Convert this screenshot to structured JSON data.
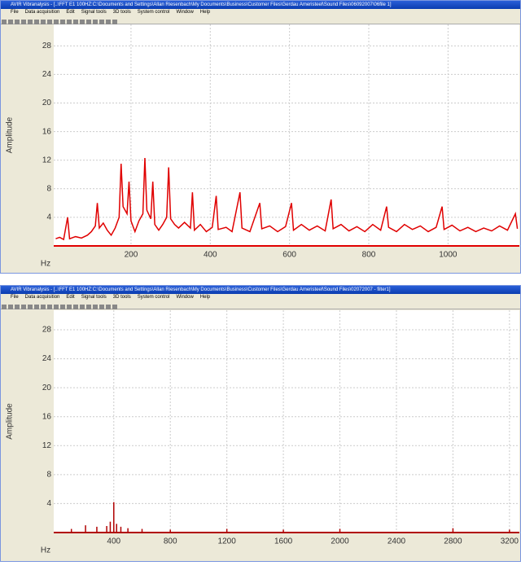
{
  "windows": [
    {
      "title": "AVIR Vibranalysis - [..\\FFT E1 100HZ:C:\\Documents and Settings\\Allan Riesenbach\\My Documents\\Business\\Customer Files\\Gerdau Ameristeel\\Sound Files\\06092007\\06file 1]",
      "menu": [
        "File",
        "Data acquisition",
        "Edit",
        "Signal tools",
        "3D tools",
        "System control",
        "Window",
        "Help"
      ],
      "chart_data": {
        "type": "line",
        "y_label": "Amplitude",
        "x_label": "Hz",
        "color": "#e00000",
        "grid": true,
        "xlim": [
          5,
          1180
        ],
        "ylim": [
          0,
          31
        ],
        "xticks": [
          200,
          400,
          600,
          800,
          1000
        ],
        "yticks": [
          4,
          8,
          12,
          16,
          20,
          24,
          28
        ],
        "x": [
          10,
          20,
          30,
          40,
          45,
          60,
          75,
          90,
          100,
          110,
          115,
          120,
          130,
          140,
          150,
          160,
          170,
          175,
          180,
          190,
          195,
          200,
          210,
          220,
          230,
          235,
          240,
          250,
          255,
          260,
          270,
          280,
          290,
          295,
          300,
          310,
          320,
          335,
          350,
          355,
          360,
          375,
          390,
          405,
          415,
          420,
          440,
          455,
          475,
          480,
          500,
          525,
          530,
          550,
          570,
          590,
          605,
          610,
          630,
          650,
          670,
          690,
          705,
          710,
          730,
          750,
          770,
          790,
          810,
          830,
          845,
          850,
          870,
          890,
          910,
          930,
          950,
          970,
          985,
          990,
          1010,
          1030,
          1050,
          1070,
          1090,
          1110,
          1130,
          1150,
          1170,
          1175
        ],
        "values": [
          1,
          1.2,
          0.9,
          4,
          1,
          1.3,
          1.1,
          1.5,
          2,
          2.8,
          6,
          2.5,
          3.2,
          2.2,
          1.5,
          2.5,
          4,
          11.5,
          5.5,
          4.5,
          9,
          3.5,
          2,
          3.5,
          4.5,
          12.3,
          5,
          3.8,
          9,
          3,
          2.2,
          3,
          4,
          11,
          3.8,
          3,
          2.5,
          3.3,
          2.5,
          7.5,
          2.2,
          3,
          2,
          2.6,
          7,
          2.3,
          2.6,
          2,
          7.5,
          2.5,
          2,
          6,
          2.4,
          2.8,
          2,
          2.7,
          6,
          2.2,
          3,
          2.2,
          2.8,
          2.1,
          6.5,
          2.4,
          3,
          2.1,
          2.7,
          2,
          3,
          2.2,
          5.5,
          2.6,
          2,
          3,
          2.3,
          2.8,
          2,
          2.6,
          5.5,
          2.3,
          2.9,
          2.1,
          2.6,
          2,
          2.5,
          2.1,
          2.8,
          2.2,
          4.5,
          2.4
        ]
      }
    },
    {
      "title": "AVIR Vibranalysis - [..\\FFT E1 100HZ:C:\\Documents and Settings\\Allan Riesenbach\\My Documents\\Business\\Customer Files\\Gerdau Ameristeel\\Sound Files\\02072007 - filter1]",
      "menu": [
        "File",
        "Data acquisition",
        "Edit",
        "Signal tools",
        "3D tools",
        "System control",
        "Window",
        "Help"
      ],
      "chart_data": {
        "type": "stem",
        "y_label": "Amplitude",
        "x_label": "Hz",
        "color": "#b00000",
        "grid": true,
        "xlim": [
          -25,
          3270
        ],
        "ylim": [
          0,
          30.7
        ],
        "xticks": [
          400,
          800,
          1200,
          1600,
          2000,
          2400,
          2800,
          3200
        ],
        "yticks": [
          4,
          8,
          12,
          16,
          20,
          24,
          28
        ],
        "x": [
          100,
          200,
          280,
          350,
          375,
          400,
          420,
          450,
          500,
          600,
          800,
          1200,
          1600,
          2000,
          2800,
          3200
        ],
        "values": [
          0.5,
          1,
          0.8,
          0.9,
          1.5,
          4.2,
          1.2,
          0.8,
          0.6,
          0.5,
          0.4,
          0.5,
          0.4,
          0.5,
          0.6,
          0.4
        ]
      }
    }
  ]
}
